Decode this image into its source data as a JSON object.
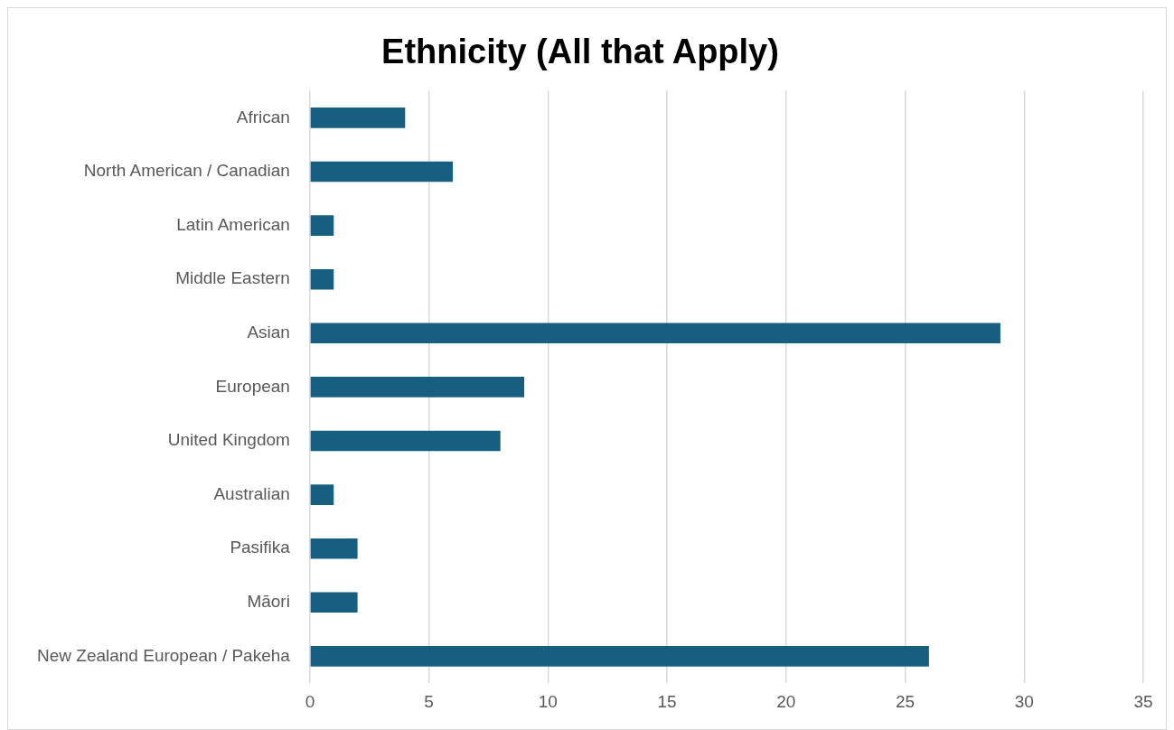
{
  "chart_data": {
    "type": "bar",
    "orientation": "horizontal",
    "title": "Ethnicity (All that Apply)",
    "categories": [
      "African",
      "North American / Canadian",
      "Latin American",
      "Middle Eastern",
      "Asian",
      "European",
      "United Kingdom",
      "Australian",
      "Pasifika",
      "Māori",
      "New Zealand European / Pakeha"
    ],
    "values": [
      4,
      6,
      1,
      1,
      29,
      9,
      8,
      1,
      2,
      2,
      26
    ],
    "color": "#175f80",
    "xlim": [
      0,
      35
    ],
    "xticks": [
      0,
      5,
      10,
      15,
      20,
      25,
      30,
      35
    ],
    "grid": "x",
    "legend": false
  }
}
